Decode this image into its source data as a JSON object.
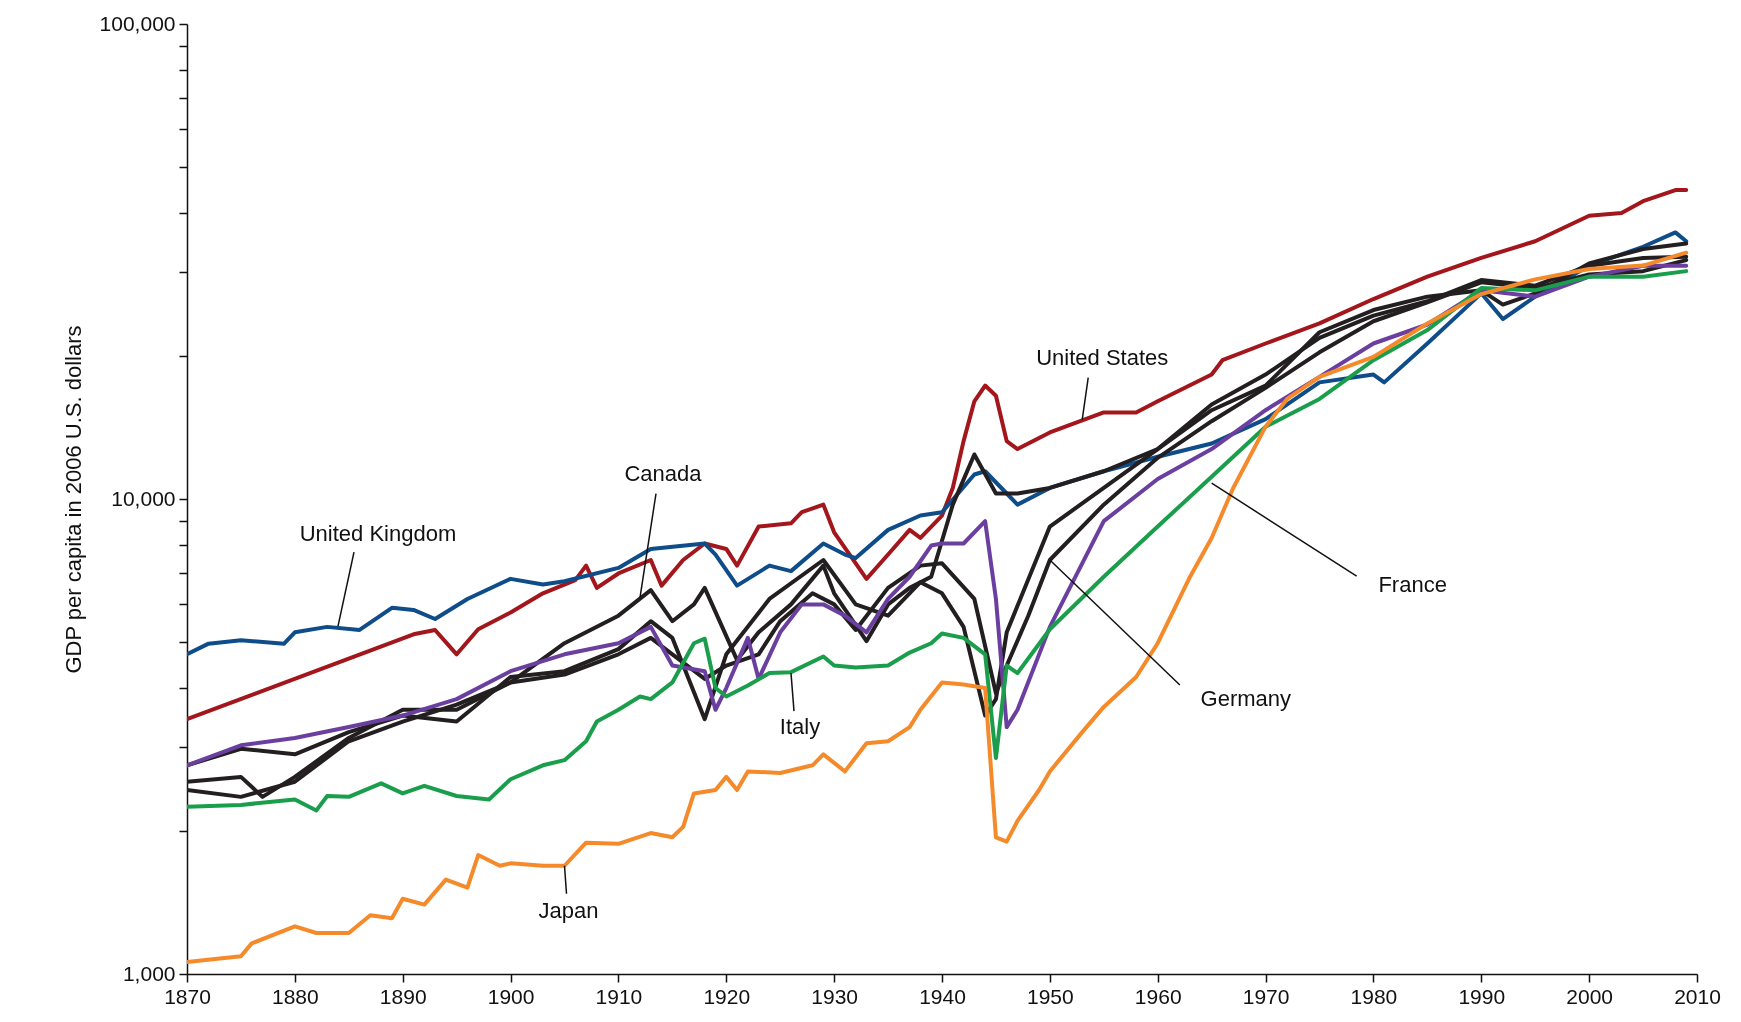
{
  "chart_data": {
    "type": "line",
    "ylabel": "GDP per capita in 2006 U.S. dollars",
    "log": "y",
    "grid": false,
    "line_style": "solid",
    "xlim": [
      1870,
      2010
    ],
    "xticks": [
      1870,
      1880,
      1890,
      1900,
      1910,
      1920,
      1930,
      1940,
      1950,
      1960,
      1970,
      1980,
      1990,
      2000,
      2010
    ],
    "ylim": [
      1000,
      100000
    ],
    "yticks": [
      {
        "value": 1000,
        "label": "1,000"
      },
      {
        "value": 2000,
        "label": null
      },
      {
        "value": 3000,
        "label": null
      },
      {
        "value": 4000,
        "label": null
      },
      {
        "value": 5000,
        "label": null
      },
      {
        "value": 6000,
        "label": null
      },
      {
        "value": 7000,
        "label": null
      },
      {
        "value": 8000,
        "label": null
      },
      {
        "value": 9000,
        "label": null
      },
      {
        "value": 10000,
        "label": "10,000"
      },
      {
        "value": 20000,
        "label": null
      },
      {
        "value": 30000,
        "label": null
      },
      {
        "value": 40000,
        "label": null
      },
      {
        "value": 50000,
        "label": null
      },
      {
        "value": 60000,
        "label": null
      },
      {
        "value": 70000,
        "label": null
      },
      {
        "value": 80000,
        "label": null
      },
      {
        "value": 90000,
        "label": null
      },
      {
        "value": 100000,
        "label": "100,000"
      }
    ],
    "series": [
      {
        "color": "#a3161c",
        "x": [
          1870,
          1891,
          1893,
          1895,
          1897,
          1900,
          1903,
          1906,
          1907,
          1908,
          1910,
          1913,
          1914,
          1916,
          1918,
          1920,
          1921,
          1923,
          1926,
          1927,
          1929,
          1930,
          1933,
          1935,
          1937,
          1938,
          1940,
          1941,
          1942,
          1943,
          1944,
          1945,
          1946,
          1947,
          1948,
          1950,
          1952,
          1955,
          1958,
          1960,
          1965,
          1966,
          1970,
          1975,
          1980,
          1985,
          1990,
          1995,
          2000,
          2003,
          2005,
          2008,
          2009
        ],
        "values": [
          3440,
          5190,
          5300,
          4710,
          5320,
          5770,
          6330,
          6750,
          7240,
          6500,
          6970,
          7440,
          6570,
          7440,
          8060,
          7850,
          7240,
          8750,
          8890,
          9380,
          9730,
          8510,
          6790,
          7640,
          8610,
          8280,
          9230,
          10550,
          13240,
          16060,
          17330,
          16500,
          13240,
          12740,
          13090,
          13810,
          14350,
          15210,
          15210,
          16060,
          18280,
          19600,
          21250,
          23420,
          26360,
          29380,
          32180,
          34890,
          39470,
          40000,
          42360,
          44700,
          44700
        ]
      },
      {
        "color": "#0e4c8a",
        "x": [
          1870,
          1872,
          1875,
          1879,
          1880,
          1883,
          1886,
          1889,
          1891,
          1893,
          1896,
          1900,
          1903,
          1905,
          1910,
          1913,
          1918,
          1919,
          1921,
          1924,
          1926,
          1929,
          1931,
          1932,
          1935,
          1938,
          1940,
          1943,
          1944,
          1946,
          1947,
          1950,
          1955,
          1960,
          1965,
          1970,
          1975,
          1980,
          1981,
          1985,
          1990,
          1992,
          1995,
          2000,
          2005,
          2008,
          2009
        ],
        "values": [
          4710,
          4960,
          5040,
          4960,
          5240,
          5380,
          5300,
          5900,
          5840,
          5590,
          6160,
          6790,
          6610,
          6710,
          7160,
          7850,
          8060,
          7640,
          6570,
          7240,
          7050,
          8060,
          7640,
          7510,
          8610,
          9230,
          9380,
          11260,
          11440,
          10270,
          9730,
          10550,
          11440,
          12270,
          13090,
          14730,
          17600,
          18280,
          17600,
          21250,
          27100,
          23920,
          26670,
          30980,
          33960,
          36410,
          34890
        ]
      },
      {
        "color": "#231f20",
        "x": [
          1870,
          1875,
          1877,
          1880,
          1885,
          1890,
          1895,
          1900,
          1905,
          1910,
          1913,
          1915,
          1917,
          1918,
          1921,
          1923,
          1926,
          1929,
          1930,
          1933,
          1935,
          1937,
          1939,
          1941,
          1943,
          1945,
          1947,
          1950,
          1955,
          1960,
          1965,
          1970,
          1975,
          1980,
          1985,
          1990,
          1992,
          1995,
          2000,
          2005,
          2009
        ],
        "values": [
          2540,
          2600,
          2360,
          2600,
          3140,
          3600,
          3600,
          4110,
          4970,
          5680,
          6430,
          5530,
          6000,
          6500,
          4580,
          5240,
          6000,
          7240,
          6330,
          5020,
          6000,
          6500,
          6860,
          9730,
          12410,
          10270,
          10270,
          10550,
          11440,
          12740,
          15380,
          17330,
          22440,
          24990,
          26670,
          27500,
          25660,
          27100,
          31330,
          33600,
          34510
        ]
      },
      {
        "color": "#231f20",
        "x": [
          1870,
          1875,
          1880,
          1885,
          1890,
          1895,
          1900,
          1905,
          1910,
          1913,
          1915,
          1918,
          1920,
          1924,
          1929,
          1932,
          1935,
          1938,
          1940,
          1942,
          1944,
          1945,
          1946,
          1950,
          1955,
          1960,
          1965,
          1970,
          1975,
          1980,
          1985,
          1990,
          1995,
          2000,
          2005,
          2009
        ],
        "values": [
          2750,
          2980,
          2900,
          3230,
          3500,
          3400,
          4220,
          4340,
          4830,
          5530,
          5100,
          3440,
          4710,
          6160,
          7440,
          6000,
          5680,
          6680,
          6330,
          5380,
          3500,
          3790,
          5240,
          8750,
          10550,
          12740,
          15810,
          18280,
          21830,
          24320,
          26080,
          28900,
          28120,
          30980,
          32180,
          32350
        ]
      },
      {
        "color": "#231f20",
        "x": [
          1870,
          1875,
          1880,
          1885,
          1890,
          1895,
          1900,
          1905,
          1910,
          1913,
          1915,
          1918,
          1920,
          1923,
          1925,
          1928,
          1930,
          1932,
          1935,
          1938,
          1940,
          1943,
          1945,
          1946,
          1948,
          1950,
          1955,
          1960,
          1965,
          1970,
          1975,
          1980,
          1985,
          1990,
          1995,
          2000,
          2005,
          2009
        ],
        "values": [
          2440,
          2360,
          2540,
          3090,
          3400,
          3690,
          4110,
          4270,
          4710,
          5100,
          4710,
          4180,
          4460,
          4710,
          5530,
          6330,
          6000,
          5300,
          6500,
          7240,
          7320,
          6160,
          3900,
          4460,
          5680,
          7440,
          9730,
          12210,
          14580,
          17140,
          20360,
          23670,
          25940,
          28590,
          27800,
          29700,
          30180,
          31840
        ]
      },
      {
        "color": "#6a3fa0",
        "x": [
          1870,
          1875,
          1880,
          1885,
          1890,
          1895,
          1900,
          1905,
          1910,
          1913,
          1915,
          1918,
          1919,
          1920,
          1922,
          1923,
          1925,
          1927,
          1929,
          1931,
          1933,
          1935,
          1937,
          1939,
          1940,
          1942,
          1944,
          1945,
          1946,
          1947,
          1950,
          1955,
          1960,
          1965,
          1970,
          1975,
          1980,
          1985,
          1990,
          1995,
          2000,
          2005,
          2009
        ],
        "values": [
          2750,
          3030,
          3140,
          3310,
          3500,
          3790,
          4340,
          4710,
          4970,
          5380,
          4460,
          4340,
          3600,
          4000,
          5100,
          4180,
          5240,
          6000,
          6000,
          5680,
          5240,
          6160,
          6860,
          7980,
          8060,
          8060,
          8980,
          6160,
          3310,
          3600,
          5380,
          8980,
          11020,
          12740,
          15380,
          18080,
          21250,
          23300,
          27500,
          26670,
          29380,
          30980,
          30980
        ]
      },
      {
        "color": "#1a9e4b",
        "x": [
          1870,
          1875,
          1880,
          1882,
          1883,
          1885,
          1888,
          1890,
          1892,
          1895,
          1898,
          1900,
          1903,
          1905,
          1907,
          1908,
          1910,
          1912,
          1913,
          1915,
          1917,
          1918,
          1919,
          1920,
          1922,
          1924,
          1926,
          1929,
          1930,
          1932,
          1935,
          1937,
          1939,
          1940,
          1942,
          1944,
          1945,
          1946,
          1947,
          1950,
          1955,
          1960,
          1965,
          1970,
          1975,
          1980,
          1985,
          1990,
          1995,
          2000,
          2005,
          2009
        ],
        "values": [
          2250,
          2270,
          2330,
          2210,
          2370,
          2360,
          2520,
          2400,
          2490,
          2370,
          2330,
          2570,
          2750,
          2820,
          3090,
          3400,
          3600,
          3840,
          3790,
          4110,
          4970,
          5080,
          4000,
          3840,
          4050,
          4300,
          4320,
          4660,
          4460,
          4420,
          4460,
          4750,
          4970,
          5210,
          5100,
          4710,
          2850,
          4460,
          4300,
          5320,
          6860,
          8750,
          11140,
          14200,
          16240,
          19600,
          22680,
          27800,
          27500,
          29380,
          29380,
          30180
        ]
      },
      {
        "color": "#f58a2b",
        "x": [
          1870,
          1875,
          1876,
          1880,
          1882,
          1885,
          1887,
          1889,
          1890,
          1892,
          1894,
          1896,
          1897,
          1899,
          1900,
          1903,
          1905,
          1907,
          1910,
          1913,
          1915,
          1916,
          1917,
          1919,
          1920,
          1921,
          1922,
          1925,
          1928,
          1929,
          1931,
          1933,
          1935,
          1937,
          1938,
          1940,
          1942,
          1944,
          1945,
          1946,
          1947,
          1949,
          1950,
          1953,
          1955,
          1958,
          1960,
          1963,
          1965,
          1967,
          1970,
          1972,
          1975,
          1980,
          1985,
          1990,
          1995,
          2000,
          2005,
          2009
        ],
        "values": [
          1060,
          1090,
          1160,
          1260,
          1220,
          1220,
          1330,
          1310,
          1440,
          1400,
          1580,
          1520,
          1780,
          1690,
          1710,
          1690,
          1690,
          1890,
          1880,
          1980,
          1940,
          2040,
          2400,
          2440,
          2600,
          2440,
          2670,
          2650,
          2750,
          2900,
          2670,
          3060,
          3090,
          3310,
          3600,
          4110,
          4070,
          4000,
          1940,
          1900,
          2100,
          2440,
          2670,
          3230,
          3650,
          4220,
          4970,
          6860,
          8280,
          10550,
          14200,
          16240,
          18080,
          19920,
          23420,
          27000,
          29000,
          30500,
          31000,
          33000
        ]
      }
    ],
    "annotations": [
      {
        "text": "United States",
        "x": 1953,
        "y": 14700
      },
      {
        "text": "United Kingdom",
        "x": 1884,
        "y": 5400
      },
      {
        "text": "Canada",
        "x": 1912,
        "y": 6200
      },
      {
        "text": "Italy",
        "x": 1926,
        "y": 4300
      },
      {
        "text": "Japan",
        "x": 1905,
        "y": 1690
      },
      {
        "text": "France",
        "x": 1965,
        "y": 10800
      },
      {
        "text": "Germany",
        "x": 1950,
        "y": 7440
      }
    ]
  }
}
